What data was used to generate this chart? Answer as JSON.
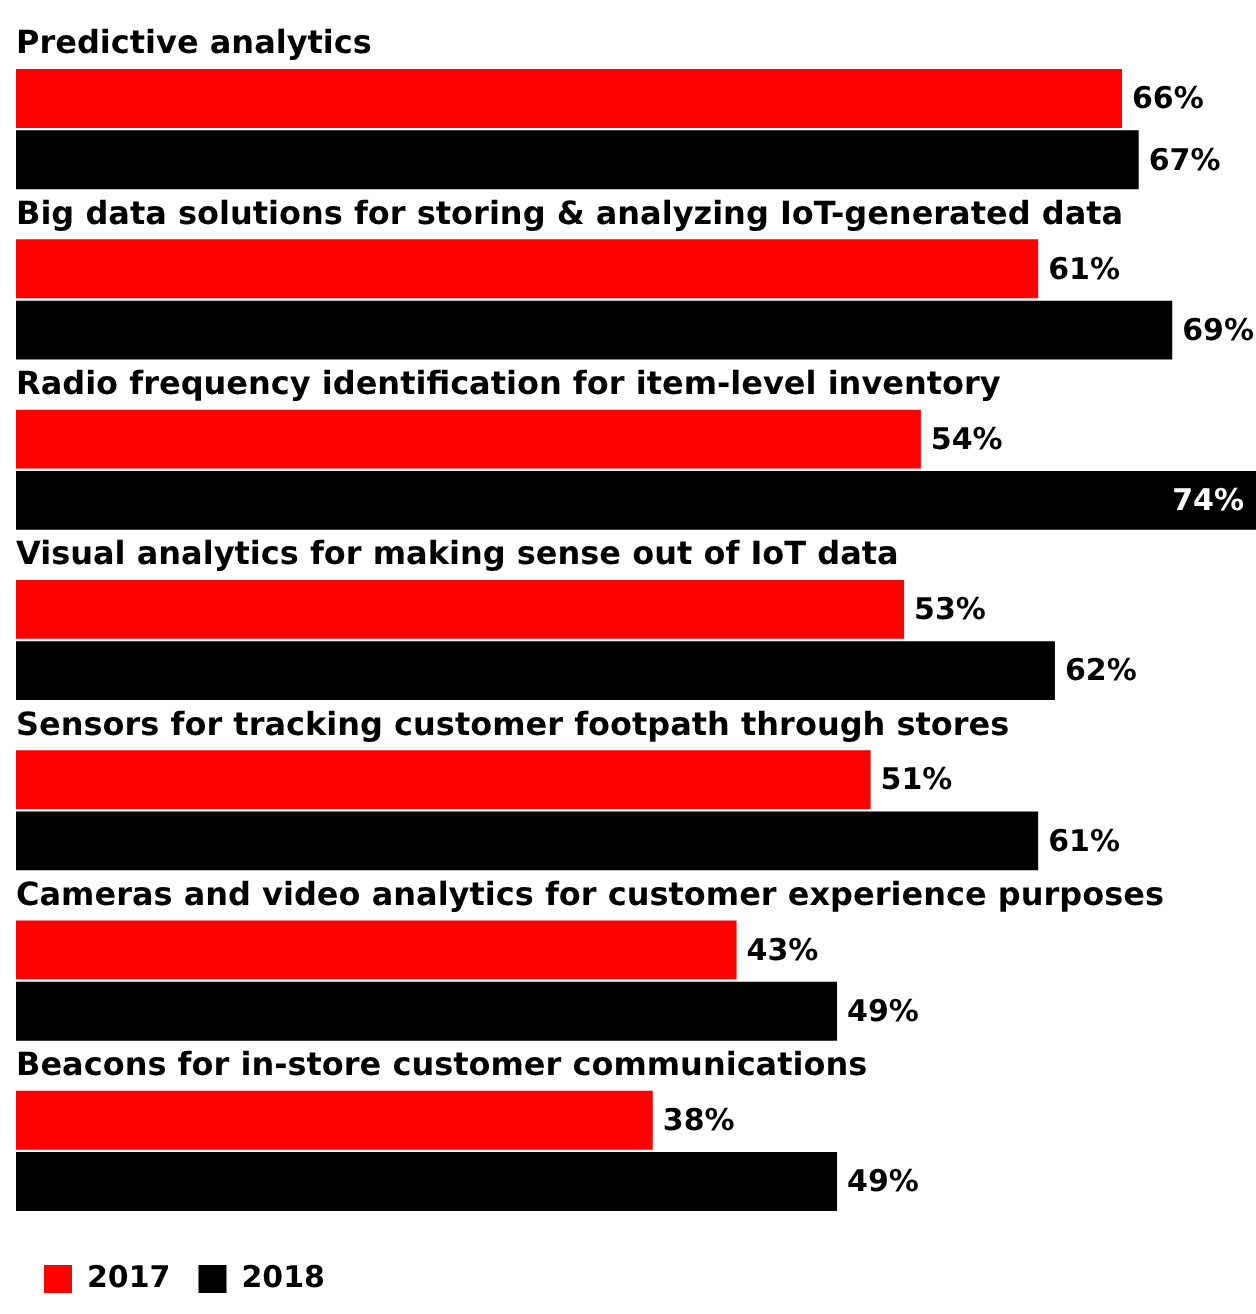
{
  "chart_data": {
    "type": "bar",
    "orientation": "horizontal",
    "legend": "bottom",
    "categories": [
      "Predictive analytics",
      "Big data solutions for storing & analyzing IoT-generated data",
      "Radio frequency identification for item-level inventory",
      "Visual analytics for making sense out of IoT data",
      "Sensors for tracking customer footpath through stores",
      "Cameras and video analytics for customer experience purposes",
      "Beacons for in-store customer communications"
    ],
    "series": [
      {
        "name": "2017",
        "color": "#ff0000",
        "values": [
          66,
          61,
          54,
          53,
          51,
          43,
          38
        ],
        "value_labels": [
          "66%",
          "61%",
          "54%",
          "53%",
          "51%",
          "43%",
          "38%"
        ]
      },
      {
        "name": "2018",
        "color": "#000000",
        "values": [
          67,
          69,
          74,
          62,
          61,
          49,
          49
        ],
        "value_labels": [
          "67%",
          "69%",
          "74%",
          "62%",
          "61%",
          "49%",
          "49%"
        ]
      }
    ]
  }
}
